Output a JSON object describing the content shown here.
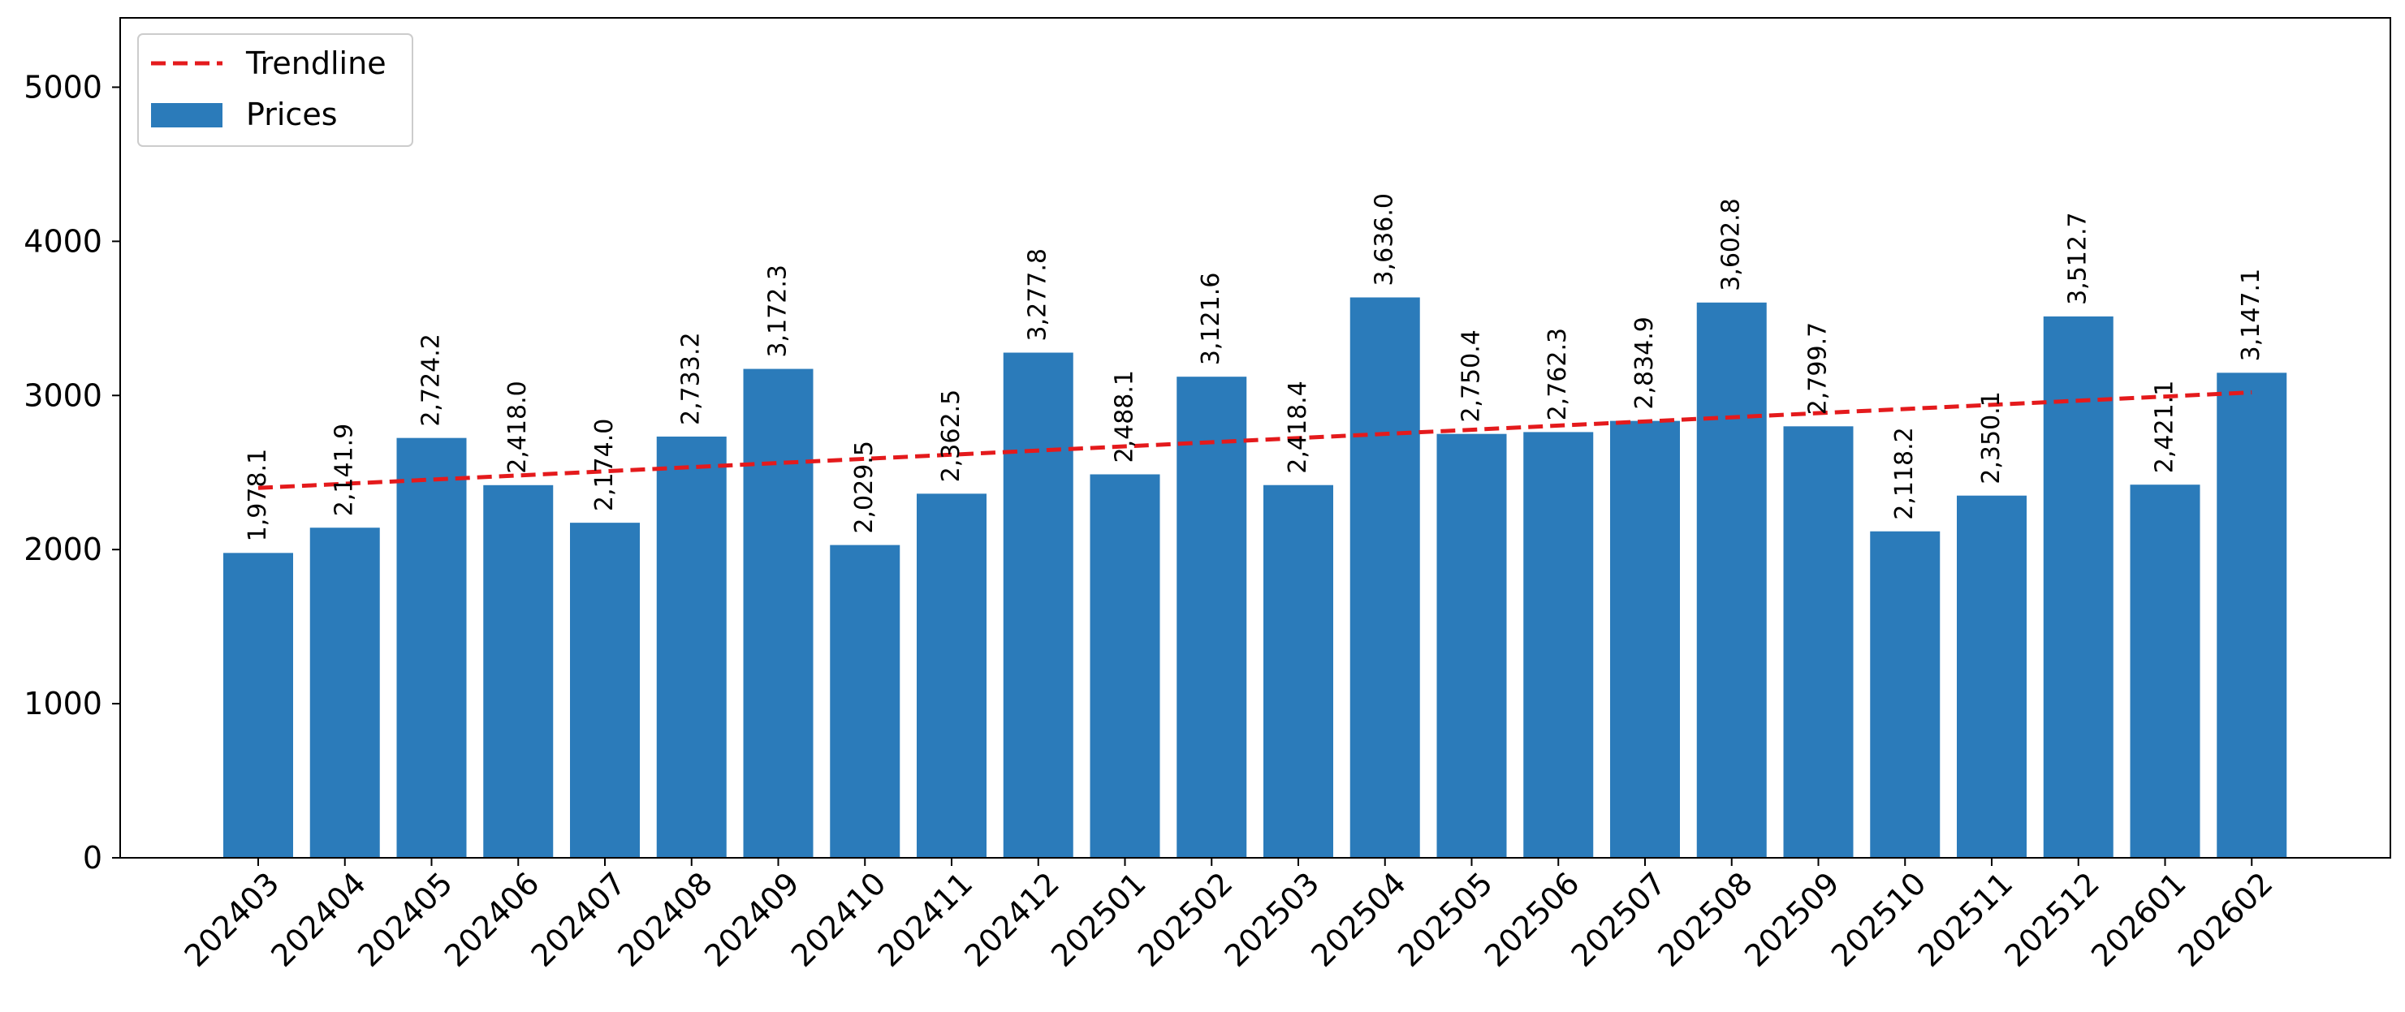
{
  "chart_data": {
    "type": "bar",
    "title": "",
    "xlabel": "",
    "ylabel": "",
    "ylim": [
      0,
      5450
    ],
    "yticks": [
      0,
      1000,
      2000,
      3000,
      4000,
      5000
    ],
    "grid": false,
    "legend_position": "top-left",
    "categories": [
      "202403",
      "202404",
      "202405",
      "202406",
      "202407",
      "202408",
      "202409",
      "202410",
      "202411",
      "202412",
      "202501",
      "202502",
      "202503",
      "202504",
      "202505",
      "202506",
      "202507",
      "202508",
      "202509",
      "202510",
      "202511",
      "202512",
      "202601",
      "202602"
    ],
    "series": [
      {
        "name": "Prices",
        "kind": "bar",
        "color": "#2b7bba",
        "values": [
          1978.1,
          2141.9,
          2724.2,
          2418.0,
          2174.0,
          2733.2,
          3172.3,
          2029.5,
          2362.5,
          3277.8,
          2488.1,
          3121.6,
          2418.4,
          3636.0,
          2750.4,
          2762.3,
          2834.9,
          3602.8,
          2799.7,
          2118.2,
          2350.1,
          3512.7,
          2421.1,
          3147.1
        ],
        "labels": [
          "1,978.1",
          "2,141.9",
          "2,724.2",
          "2,418.0",
          "2,174.0",
          "2,733.2",
          "3,172.3",
          "2,029.5",
          "2,362.5",
          "3,277.8",
          "2,488.1",
          "3,121.6",
          "2,418.4",
          "3,636.0",
          "2,750.4",
          "2,762.3",
          "2,834.9",
          "3,602.8",
          "2,799.7",
          "2,118.2",
          "2,350.1",
          "3,512.7",
          "2,421.1",
          "3,147.1"
        ]
      },
      {
        "name": "Trendline",
        "kind": "line",
        "style": "dashed",
        "color": "#e41a1c",
        "start": 2400,
        "end": 3020
      }
    ],
    "legend": [
      {
        "label": "Trendline",
        "marker": "dashed-line",
        "color": "#e41a1c"
      },
      {
        "label": "Prices",
        "marker": "patch",
        "color": "#2b7bba"
      }
    ]
  }
}
